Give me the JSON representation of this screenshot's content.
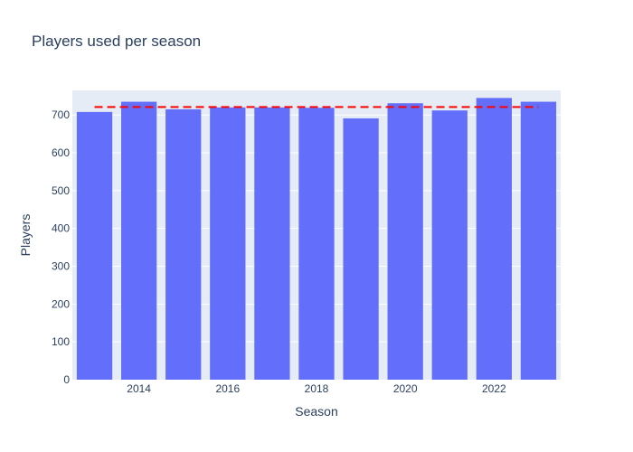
{
  "chart_data": {
    "type": "bar",
    "title": "Players used per season",
    "xlabel": "Season",
    "ylabel": "Players",
    "x": [
      2013,
      2014,
      2015,
      2016,
      2017,
      2018,
      2019,
      2020,
      2021,
      2022,
      2023
    ],
    "values": [
      708,
      735,
      715,
      720,
      720,
      719,
      691,
      731,
      712,
      745,
      735
    ],
    "ylim": [
      0,
      765
    ],
    "xlim": [
      2012.5,
      2023.5
    ],
    "x_ticks": [
      2014,
      2016,
      2018,
      2020,
      2022
    ],
    "y_ticks": [
      0,
      100,
      200,
      300,
      400,
      500,
      600,
      700
    ],
    "reference_line": {
      "value": 721,
      "x_start": 2013,
      "x_end": 2023,
      "style": "dashed"
    },
    "grid": true,
    "legend": "none",
    "colors": {
      "bar": "#636efa",
      "reference_line": "#ff0000",
      "plot_bg": "#e5ecf6",
      "grid": "#ffffff",
      "text": "#2a3f5f"
    }
  }
}
